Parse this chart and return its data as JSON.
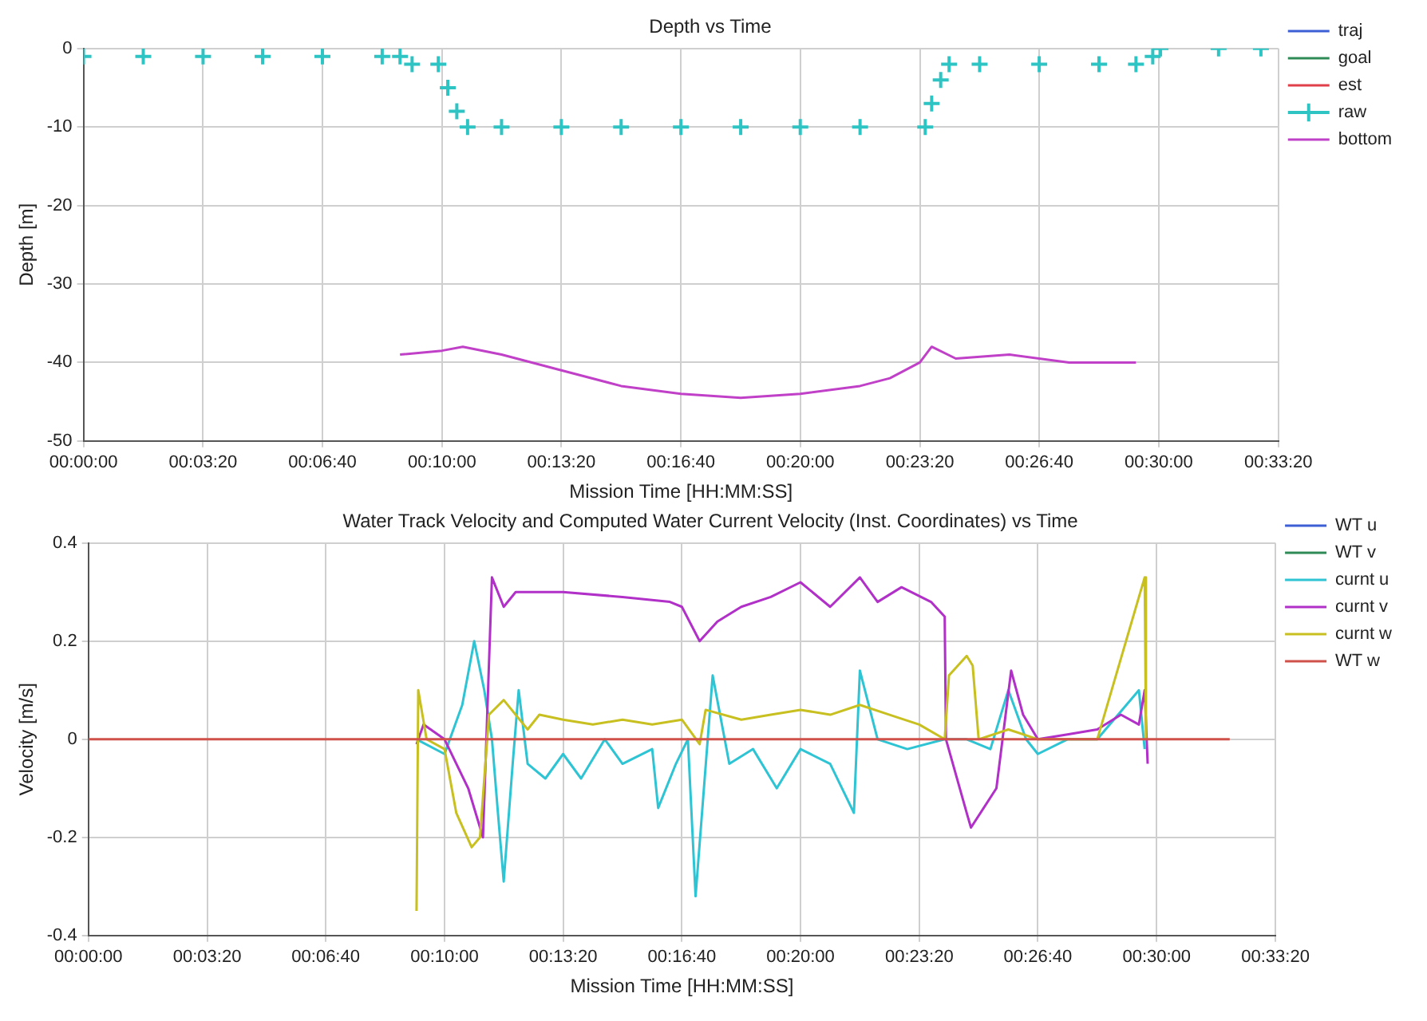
{
  "chart_data": [
    {
      "type": "line",
      "title": "Depth vs Time",
      "xlabel": "Mission Time [HH:MM:SS]",
      "ylabel": "Depth [m]",
      "xlim": [
        0,
        0.5556
      ],
      "xticks": [
        {
          "value": 0,
          "label": "00:00:00"
        },
        {
          "value": 0.0556,
          "label": "00:03:20"
        },
        {
          "value": 0.1111,
          "label": "00:06:40"
        },
        {
          "value": 0.1667,
          "label": "00:10:00"
        },
        {
          "value": 0.2222,
          "label": "00:13:20"
        },
        {
          "value": 0.2778,
          "label": "00:16:40"
        },
        {
          "value": 0.3333,
          "label": "00:20:00"
        },
        {
          "value": 0.3889,
          "label": "00:23:20"
        },
        {
          "value": 0.4444,
          "label": "00:26:40"
        },
        {
          "value": 0.5,
          "label": "00:30:00"
        },
        {
          "value": 0.5556,
          "label": "00:33:20"
        }
      ],
      "ylim": [
        -50,
        0
      ],
      "yticks": [
        -50,
        -40,
        -30,
        -20,
        -10,
        0
      ],
      "grid": true,
      "legend": "top right",
      "line_style": "solid",
      "series": [
        {
          "name": "traj",
          "color": "#3d5fd6"
        },
        {
          "name": "goal",
          "color": "#2e8b57"
        },
        {
          "name": "est",
          "color": "#e0404a"
        },
        {
          "name": "raw",
          "type": "scatter",
          "marker": "cross",
          "color": "#2ec4c4",
          "x": [
            0,
            0.0278,
            0.0556,
            0.0833,
            0.1111,
            0.1389,
            0.1472,
            0.1528,
            0.165,
            0.1694,
            0.1736,
            0.1786,
            0.1944,
            0.2222,
            0.25,
            0.2778,
            0.3056,
            0.3333,
            0.3611,
            0.3914,
            0.3944,
            0.3986,
            0.4025,
            0.4167,
            0.4444,
            0.4722,
            0.4894,
            0.4972,
            0.5008,
            0.5278,
            0.5475
          ],
          "values": [
            -1,
            -1,
            -1,
            -1,
            -1,
            -1,
            -1,
            -2,
            -2,
            -5,
            -8,
            -10,
            -10,
            -10,
            -10,
            -10,
            -10,
            -10,
            -10,
            -10,
            -7,
            -4,
            -2,
            -2,
            -2,
            -2,
            -2,
            -1,
            0,
            0,
            0
          ]
        },
        {
          "name": "bottom",
          "color": "#c040c8",
          "x": [
            0.1472,
            0.1667,
            0.1764,
            0.1944,
            0.2222,
            0.25,
            0.2778,
            0.3056,
            0.3333,
            0.3611,
            0.375,
            0.3889,
            0.3944,
            0.4056,
            0.4306,
            0.4583,
            0.4894
          ],
          "values": [
            -39,
            -38.5,
            -38,
            -39,
            -41,
            -43,
            -44,
            -44.5,
            -44,
            -43,
            -42,
            -40,
            -38,
            -39.5,
            -39,
            -40,
            -40
          ]
        }
      ]
    },
    {
      "type": "line",
      "title": "Water Track Velocity and Computed Water Current Velocity (Inst. Coordinates) vs Time",
      "xlabel": "Mission Time [HH:MM:SS]",
      "ylabel": "Velocity [m/s]",
      "xlim": [
        0,
        0.5556
      ],
      "xticks": [
        {
          "value": 0,
          "label": "00:00:00"
        },
        {
          "value": 0.0556,
          "label": "00:03:20"
        },
        {
          "value": 0.1111,
          "label": "00:06:40"
        },
        {
          "value": 0.1667,
          "label": "00:10:00"
        },
        {
          "value": 0.2222,
          "label": "00:13:20"
        },
        {
          "value": 0.2778,
          "label": "00:16:40"
        },
        {
          "value": 0.3333,
          "label": "00:20:00"
        },
        {
          "value": 0.3889,
          "label": "00:23:20"
        },
        {
          "value": 0.4444,
          "label": "00:26:40"
        },
        {
          "value": 0.5,
          "label": "00:30:00"
        },
        {
          "value": 0.5556,
          "label": "00:33:20"
        }
      ],
      "ylim": [
        -0.4,
        0.4
      ],
      "yticks": [
        -0.4,
        -0.2,
        0,
        0.2,
        0.4
      ],
      "grid": true,
      "legend": "top right",
      "line_style": "solid",
      "series": [
        {
          "name": "WT u",
          "color": "#3d5fd6"
        },
        {
          "name": "WT v",
          "color": "#2e8b57"
        },
        {
          "name": "curnt u",
          "color": "#2ec4d4",
          "x": [
            0.1536,
            0.1667,
            0.175,
            0.1806,
            0.1853,
            0.1889,
            0.1917,
            0.1944,
            0.1986,
            0.2014,
            0.2056,
            0.2139,
            0.2222,
            0.2306,
            0.2417,
            0.25,
            0.2639,
            0.2667,
            0.275,
            0.2806,
            0.2842,
            0.2922,
            0.3,
            0.3111,
            0.3222,
            0.3333,
            0.3472,
            0.3583,
            0.3611,
            0.3694,
            0.3833,
            0.4008,
            0.4111,
            0.4222,
            0.4306,
            0.4389,
            0.4444,
            0.4583,
            0.4722,
            0.4917,
            0.4944
          ],
          "values": [
            0,
            -0.03,
            0.07,
            0.2,
            0.1,
            0,
            -0.15,
            -0.29,
            -0.05,
            0.1,
            -0.05,
            -0.08,
            -0.03,
            -0.08,
            0,
            -0.05,
            -0.02,
            -0.14,
            -0.05,
            0,
            -0.32,
            0.13,
            -0.05,
            -0.02,
            -0.1,
            -0.02,
            -0.05,
            -0.15,
            0.14,
            0,
            -0.02,
            0,
            0,
            -0.02,
            0.1,
            0,
            -0.03,
            0,
            0,
            0.1,
            -0.02
          ]
        },
        {
          "name": "curnt v",
          "color": "#b030c8",
          "x": [
            0.1536,
            0.1569,
            0.1667,
            0.1778,
            0.1847,
            0.1889,
            0.1944,
            0.2,
            0.2222,
            0.25,
            0.2722,
            0.2778,
            0.2861,
            0.2944,
            0.3056,
            0.3194,
            0.3333,
            0.3472,
            0.3611,
            0.3694,
            0.3806,
            0.3944,
            0.4008,
            0.4014,
            0.4111,
            0.4131,
            0.425,
            0.4319,
            0.4375,
            0.4444,
            0.4583,
            0.4722,
            0.4833,
            0.4917,
            0.4944,
            0.4958
          ],
          "values": [
            -0.01,
            0.03,
            0,
            -0.1,
            -0.2,
            0.33,
            0.27,
            0.3,
            0.3,
            0.29,
            0.28,
            0.27,
            0.2,
            0.24,
            0.27,
            0.29,
            0.32,
            0.27,
            0.33,
            0.28,
            0.31,
            0.28,
            0.25,
            0,
            -0.15,
            -0.18,
            -0.1,
            0.14,
            0.05,
            0,
            0.01,
            0.02,
            0.05,
            0.03,
            0.1,
            -0.05
          ]
        },
        {
          "name": "curnt w",
          "color": "#c8c020",
          "x": [
            0.1536,
            0.1544,
            0.1583,
            0.1667,
            0.1722,
            0.1794,
            0.1833,
            0.1875,
            0.1944,
            0.2056,
            0.2111,
            0.2222,
            0.2361,
            0.25,
            0.2639,
            0.2778,
            0.2861,
            0.2889,
            0.3056,
            0.3194,
            0.3333,
            0.3472,
            0.3611,
            0.375,
            0.3889,
            0.4008,
            0.4028,
            0.4111,
            0.4139,
            0.4167,
            0.4306,
            0.4444,
            0.4722,
            0.4944,
            0.495
          ],
          "values": [
            -0.35,
            0.1,
            0,
            -0.02,
            -0.15,
            -0.22,
            -0.2,
            0.05,
            0.08,
            0.02,
            0.05,
            0.04,
            0.03,
            0.04,
            0.03,
            0.04,
            -0.01,
            0.06,
            0.04,
            0.05,
            0.06,
            0.05,
            0.07,
            0.05,
            0.03,
            0,
            0.13,
            0.17,
            0.15,
            0,
            0.02,
            0,
            0,
            0.33,
            0
          ]
        },
        {
          "name": "WT w",
          "color": "#d0504a",
          "x": [
            0,
            0.5342
          ],
          "values": [
            0,
            0
          ]
        }
      ]
    }
  ]
}
